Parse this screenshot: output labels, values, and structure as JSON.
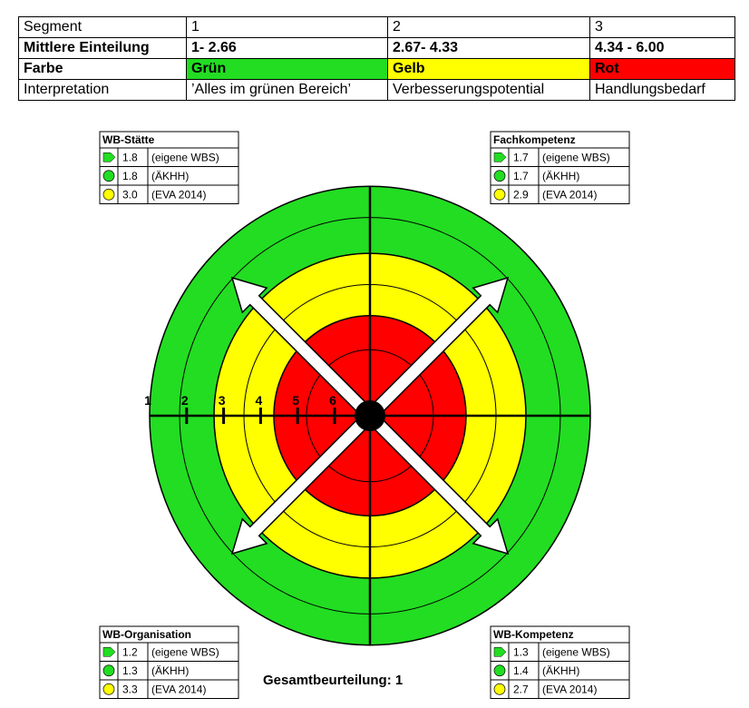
{
  "table": {
    "rows": [
      [
        "Segment",
        "1",
        "2",
        "3"
      ],
      [
        "Mittlere Einteilung",
        "1- 2.66",
        "2.67- 4.33",
        "4.34 - 6.00"
      ],
      [
        "Farbe",
        "Grün",
        "Gelb",
        "Rot"
      ],
      [
        "Interpretation",
        "’Alles im grünen Bereich’",
        "Verbesserungspotential",
        "Handlungsbedarf"
      ]
    ]
  },
  "scale": [
    "1",
    "2",
    "3",
    "4",
    "5",
    "6"
  ],
  "boxes": [
    {
      "title": "WB-Stätte",
      "rows": [
        [
          "1.8",
          "(eigene WBS)"
        ],
        [
          "1.8",
          "(ÄKHH)"
        ],
        [
          "3.0",
          "(EVA 2014)"
        ]
      ]
    },
    {
      "title": "Fachkompetenz",
      "rows": [
        [
          "1.7",
          "(eigene WBS)"
        ],
        [
          "1.7",
          "(ÄKHH)"
        ],
        [
          "2.9",
          "(EVA 2014)"
        ]
      ]
    },
    {
      "title": "WB-Organisation",
      "rows": [
        [
          "1.2",
          "(eigene WBS)"
        ],
        [
          "1.3",
          "(ÄKHH)"
        ],
        [
          "3.3",
          "(EVA 2014)"
        ]
      ]
    },
    {
      "title": "WB-Kompetenz",
      "rows": [
        [
          "1.3",
          "(eigene WBS)"
        ],
        [
          "1.4",
          "(ÄKHH)"
        ],
        [
          "2.7",
          "(EVA 2014)"
        ]
      ]
    }
  ],
  "summary": "Gesamtbeurteilung: 1"
}
